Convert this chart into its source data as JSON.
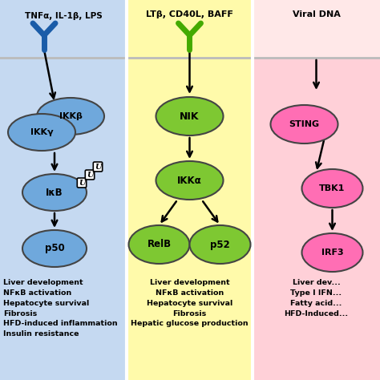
{
  "panel1_bg": "#c5d9f1",
  "panel2_bg": "#fffaaa",
  "panel3_bg": "#ffd0d8",
  "header1_bg": "#c5d9f1",
  "header2_bg": "#fffaaa",
  "header3_bg": "#ffd8d8",
  "sep_color": "#bbbbbb",
  "panel1_title": "TNFα, IL-1β, LPS",
  "panel2_title": "LTβ, CD40L, BAFF",
  "panel3_title": "Viral DNA",
  "node_blue": "#6fa8dc",
  "node_green": "#7ec832",
  "node_pink": "#ff6eb4",
  "receptor_blue": "#1a5ca8",
  "receptor_green": "#44aa00",
  "panel1_text": "Liver development\nNFκB activation\nHepatocyte survival\nFibrosis\nHFD-induced inflammation\nInsulin resistance",
  "panel2_text": "Liver development\nNFκB activation\nHepatocyte survival\nFibrosis\nHepatic glucose production",
  "panel3_text": "Liver dev...\nType I IFN...\nFatty acid...\nHFD-Induced..."
}
